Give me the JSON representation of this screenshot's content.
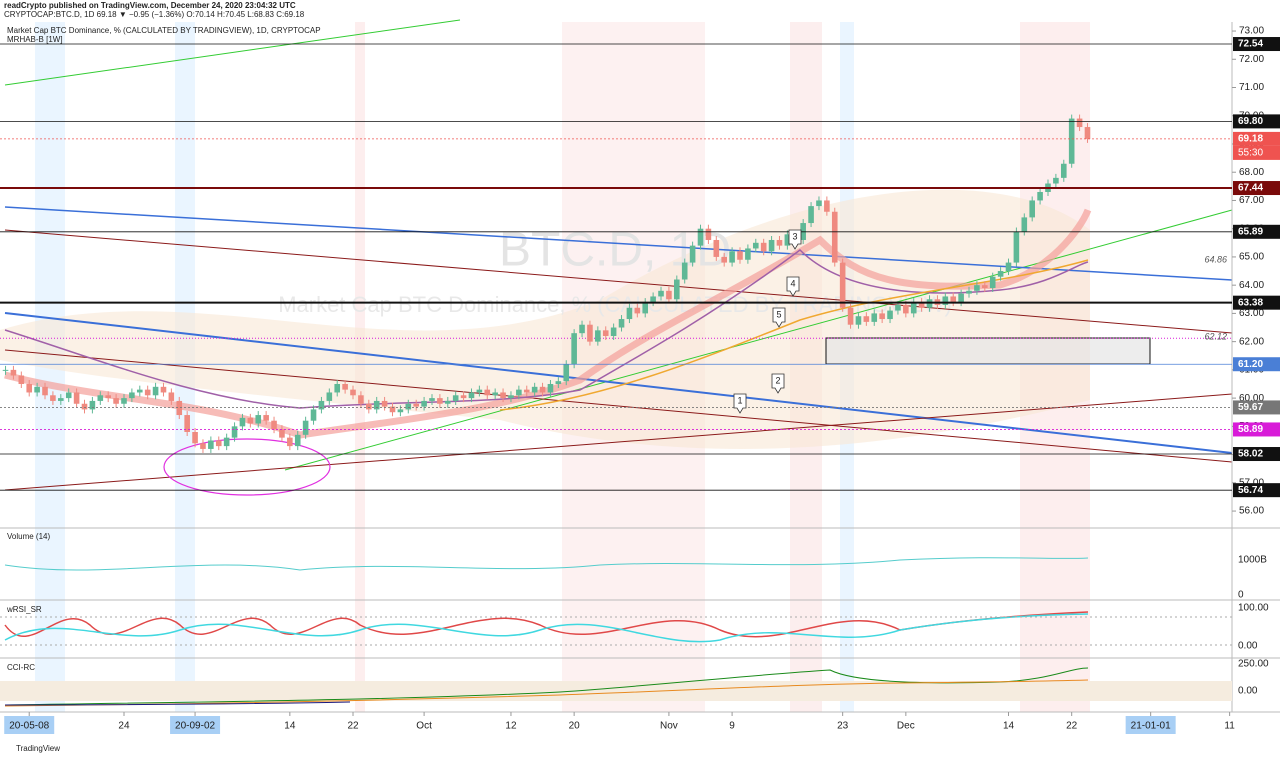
{
  "header": {
    "publisher": "readCrypto published on TradingView.com, December 24, 2020 23:04:32 UTC",
    "quote": "CRYPTOCAP:BTC.D, 1D 69.18 ▼ −0.95 (−1.36%) O:70.14 H:70.45 L:68.83 C:69.18",
    "name": "Market Cap BTC Dominance, % (CALCULATED BY TRADINGVIEW), 1D, CRYPTOCAP",
    "indicator": "MRHAB-B [1W]"
  },
  "watermark": {
    "symbol": "BTC.D, 1D",
    "name": "Market Cap BTC Dominance, % (CALCULATED BY TRADINGVIEW)"
  },
  "chart_data": {
    "type": "candlestick",
    "up_color": "#5fb896",
    "down_color": "#ef8a80",
    "values": [
      61.0,
      60.8,
      60.5,
      60.2,
      60.4,
      60.1,
      59.9,
      60.0,
      60.2,
      59.8,
      59.6,
      59.9,
      60.1,
      60.0,
      59.8,
      60.0,
      60.2,
      60.3,
      60.1,
      60.4,
      60.2,
      59.9,
      59.4,
      58.8,
      58.4,
      58.2,
      58.5,
      58.3,
      58.6,
      59.0,
      59.3,
      59.1,
      59.4,
      59.2,
      58.9,
      58.6,
      58.3,
      58.7,
      59.2,
      59.6,
      59.9,
      60.2,
      60.5,
      60.3,
      60.1,
      59.8,
      59.6,
      59.9,
      59.7,
      59.5,
      59.6,
      59.8,
      59.7,
      59.9,
      60.0,
      59.8,
      59.9,
      60.1,
      60.0,
      60.2,
      60.3,
      60.1,
      60.2,
      60.0,
      60.1,
      60.3,
      60.2,
      60.4,
      60.2,
      60.5,
      60.6,
      61.2,
      62.3,
      62.6,
      62.0,
      62.4,
      62.2,
      62.5,
      62.8,
      63.2,
      63.0,
      63.4,
      63.6,
      63.8,
      63.5,
      64.2,
      64.8,
      65.4,
      66.0,
      65.6,
      65.0,
      64.8,
      65.2,
      64.9,
      65.3,
      65.5,
      65.2,
      65.6,
      65.4,
      65.8,
      65.6,
      66.2,
      66.8,
      67.0,
      66.6,
      64.8,
      63.2,
      62.6,
      62.9,
      62.7,
      63.0,
      62.8,
      63.1,
      63.3,
      63.0,
      63.4,
      63.2,
      63.5,
      63.3,
      63.6,
      63.4,
      63.7,
      63.8,
      64.0,
      63.9,
      64.3,
      64.5,
      64.8,
      65.9,
      66.4,
      67.0,
      67.3,
      67.6,
      67.8,
      68.3,
      69.9,
      69.6,
      69.18
    ],
    "xlim": [
      -0.7,
      155.3
    ],
    "xticks": [
      {
        "value": 3,
        "label": "20-05-08"
      },
      {
        "value": 15,
        "label": "24"
      },
      {
        "value": 24,
        "label": "20-09-02"
      },
      {
        "value": 36,
        "label": "14"
      },
      {
        "value": 44,
        "label": "22"
      },
      {
        "value": 53,
        "label": "Oct"
      },
      {
        "value": 64,
        "label": "12"
      },
      {
        "value": 72,
        "label": "20"
      },
      {
        "value": 84,
        "label": "Nov"
      },
      {
        "value": 92,
        "label": "9"
      },
      {
        "value": 106,
        "label": "23"
      },
      {
        "value": 114,
        "label": "Dec"
      },
      {
        "value": 127,
        "label": "14"
      },
      {
        "value": 135,
        "label": "22"
      },
      {
        "value": 145,
        "label": "21-01-01"
      },
      {
        "value": 155,
        "label": "11"
      }
    ],
    "ylim": [
      55.4,
      73.32
    ],
    "yticks": [
      {
        "value": 56,
        "label": "56.00"
      },
      {
        "value": 57,
        "label": "57.00"
      },
      {
        "value": 58,
        "label": "58.00"
      },
      {
        "value": 59,
        "label": "59.00"
      },
      {
        "value": 60,
        "label": "60.00"
      },
      {
        "value": 61,
        "label": "61.00"
      },
      {
        "value": 62,
        "label": "62.00"
      },
      {
        "value": 63,
        "label": "63.00"
      },
      {
        "value": 64,
        "label": "64.00"
      },
      {
        "value": 65,
        "label": "65.00"
      },
      {
        "value": 66,
        "label": "66.00"
      },
      {
        "value": 67,
        "label": "67.00"
      },
      {
        "value": 68,
        "label": "68.00"
      },
      {
        "value": 69,
        "label": "69.00"
      },
      {
        "value": 70,
        "label": "70.00"
      },
      {
        "value": 71,
        "label": "71.00"
      },
      {
        "value": 72,
        "label": "72.00"
      },
      {
        "value": 73,
        "label": "73.00"
      }
    ],
    "levels": [
      {
        "value": 72.54,
        "color": "#111111"
      },
      {
        "value": 69.8,
        "label": "69.80",
        "color": "#111111"
      },
      {
        "value": 69.18,
        "color": "#ef5350"
      },
      {
        "value": 67.44,
        "color": "#7a0a0a"
      },
      {
        "value": 65.89,
        "color": "#111111"
      },
      {
        "value": 63.38,
        "color": "#111111"
      },
      {
        "value": 61.2,
        "label": "61.20",
        "color": "#4a7fd6"
      },
      {
        "value": 59.67,
        "color": "#777777"
      },
      {
        "value": 58.89,
        "color": "#d81bd8"
      },
      {
        "value": 58.02,
        "color": "#111111"
      },
      {
        "value": 56.74,
        "color": "#111111"
      }
    ],
    "countdown": "55:30",
    "annotations": [
      64.86,
      62.12
    ],
    "waves": [
      "1",
      "2",
      "3",
      "4",
      "5"
    ]
  },
  "panels": {
    "volume": {
      "title": "Volume (14)",
      "scale": "1000B",
      "zero": "0"
    },
    "wrsi": {
      "title": "wRSI_SR",
      "top": "100.00",
      "bottom": "0.00"
    },
    "cci": {
      "title": "CCI-RC",
      "top": "250.00",
      "bottom": "0.00"
    }
  },
  "footer": "TradingView"
}
